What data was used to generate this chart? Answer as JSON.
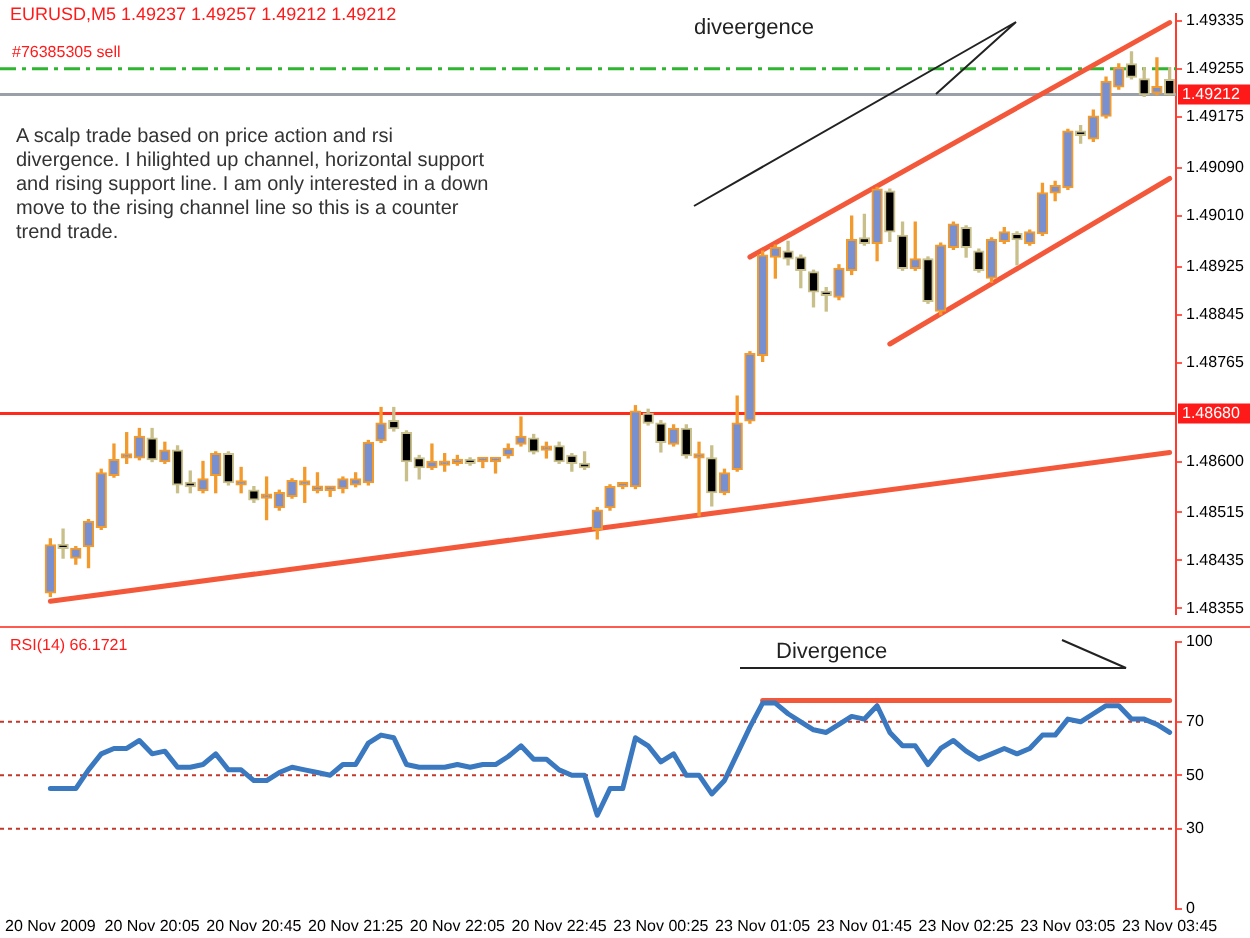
{
  "chart_data": [
    {
      "type": "candlestick",
      "title": "EURUSD,M5 1.49237 1.49257 1.49212 1.49212",
      "ohlc": [
        [
          1.48381,
          1.48471,
          1.48375,
          1.48461
        ],
        [
          1.48458,
          1.48487,
          1.48439,
          1.48455
        ],
        [
          1.48439,
          1.48458,
          1.48429,
          1.48455
        ],
        [
          1.48458,
          1.48503,
          1.48423,
          1.485
        ],
        [
          1.4849,
          1.48587,
          1.48487,
          1.48581
        ],
        [
          1.48577,
          1.48629,
          1.48574,
          1.48603
        ],
        [
          1.48606,
          1.48648,
          1.48597,
          1.48606
        ],
        [
          1.48606,
          1.48655,
          1.48603,
          1.48642
        ],
        [
          1.48639,
          1.48655,
          1.486,
          1.48603
        ],
        [
          1.486,
          1.48632,
          1.48597,
          1.48619
        ],
        [
          1.48619,
          1.48626,
          1.48548,
          1.48561
        ],
        [
          1.48565,
          1.48584,
          1.48548,
          1.48558
        ],
        [
          1.48552,
          1.486,
          1.48548,
          1.48571
        ],
        [
          1.48577,
          1.48616,
          1.48548,
          1.48613
        ],
        [
          1.48613,
          1.48616,
          1.48561,
          1.48565
        ],
        [
          1.48561,
          1.4859,
          1.48548,
          1.48561
        ],
        [
          1.48552,
          1.48558,
          1.48532,
          1.48536
        ],
        [
          1.48539,
          1.48574,
          1.48503,
          1.48539
        ],
        [
          1.48523,
          1.48552,
          1.48519,
          1.48548
        ],
        [
          1.48542,
          1.48571,
          1.48539,
          1.48568
        ],
        [
          1.48561,
          1.4859,
          1.48532,
          1.48561
        ],
        [
          1.48552,
          1.48581,
          1.48548,
          1.48558
        ],
        [
          1.48552,
          1.48558,
          1.48542,
          1.48552
        ],
        [
          1.48555,
          1.48574,
          1.48548,
          1.48571
        ],
        [
          1.48561,
          1.48581,
          1.48558,
          1.48571
        ],
        [
          1.48565,
          1.48635,
          1.48561,
          1.48632
        ],
        [
          1.48635,
          1.4869,
          1.48632,
          1.48664
        ],
        [
          1.48668,
          1.4869,
          1.48651,
          1.48655
        ],
        [
          1.48648,
          1.48651,
          1.48568,
          1.486
        ],
        [
          1.48606,
          1.4861,
          1.48571,
          1.4859
        ],
        [
          1.4859,
          1.48629,
          1.48587,
          1.486
        ],
        [
          1.48594,
          1.48613,
          1.48584,
          1.48594
        ],
        [
          1.48597,
          1.4861,
          1.48594,
          1.48603
        ],
        [
          1.486,
          1.48606,
          1.48594,
          1.48597
        ],
        [
          1.486,
          1.48606,
          1.4859,
          1.486
        ],
        [
          1.486,
          1.48606,
          1.48581,
          1.48603
        ],
        [
          1.4861,
          1.48629,
          1.48606,
          1.48622
        ],
        [
          1.48629,
          1.48674,
          1.48626,
          1.48642
        ],
        [
          1.48639,
          1.48645,
          1.48613,
          1.48616
        ],
        [
          1.48619,
          1.48632,
          1.48606,
          1.48619
        ],
        [
          1.48626,
          1.48632,
          1.48597,
          1.486
        ],
        [
          1.4861,
          1.48613,
          1.48584,
          1.48597
        ],
        [
          1.48597,
          1.48616,
          1.48587,
          1.4859
        ],
        [
          1.48487,
          1.48523,
          1.48471,
          1.48519
        ],
        [
          1.48523,
          1.48561,
          1.48519,
          1.48558
        ],
        [
          1.48558,
          1.48561,
          1.48555,
          1.48558
        ],
        [
          1.48558,
          1.48693,
          1.48555,
          1.48684
        ],
        [
          1.4868,
          1.48687,
          1.48661,
          1.48664
        ],
        [
          1.48664,
          1.48668,
          1.48616,
          1.48632
        ],
        [
          1.48629,
          1.48661,
          1.48626,
          1.48655
        ],
        [
          1.48655,
          1.48661,
          1.48606,
          1.4861
        ],
        [
          1.48606,
          1.48632,
          1.4851,
          1.48606
        ],
        [
          1.48606,
          1.48626,
          1.48526,
          1.48548
        ],
        [
          1.48548,
          1.48587,
          1.48545,
          1.48581
        ],
        [
          1.48587,
          1.48709,
          1.48584,
          1.48664
        ],
        [
          1.48668,
          1.48783,
          1.48664,
          1.4878
        ],
        [
          1.48777,
          1.48951,
          1.48767,
          1.48944
        ],
        [
          1.48941,
          1.48961,
          1.48906,
          1.48957
        ],
        [
          1.48951,
          1.48967,
          1.48928,
          1.48938
        ],
        [
          1.48941,
          1.48944,
          1.4889,
          1.48919
        ],
        [
          1.48916,
          1.48919,
          1.48858,
          1.48883
        ],
        [
          1.48883,
          1.4889,
          1.48851,
          1.48877
        ],
        [
          1.48874,
          1.48928,
          1.4887,
          1.48922
        ],
        [
          1.48919,
          1.49009,
          1.48912,
          1.4897
        ],
        [
          1.48973,
          1.49012,
          1.48961,
          1.48964
        ],
        [
          1.48964,
          1.49057,
          1.48935,
          1.49054
        ],
        [
          1.49051,
          1.49054,
          1.48967,
          1.48983
        ],
        [
          1.48977,
          1.48999,
          1.48919,
          1.48922
        ],
        [
          1.48922,
          1.48999,
          1.48919,
          1.48938
        ],
        [
          1.48938,
          1.48941,
          1.48864,
          1.48867
        ],
        [
          1.48851,
          1.48964,
          1.48845,
          1.48961
        ],
        [
          1.48957,
          1.48999,
          1.48954,
          1.48996
        ],
        [
          1.4899,
          1.48993,
          1.48941,
          1.48957
        ],
        [
          1.48951,
          1.48954,
          1.48916,
          1.48919
        ],
        [
          1.48906,
          1.48973,
          1.48899,
          1.4897
        ],
        [
          1.48967,
          1.4899,
          1.48964,
          1.48983
        ],
        [
          1.4898,
          1.48983,
          1.48928,
          1.4897
        ],
        [
          1.48964,
          1.48986,
          1.48961,
          1.48983
        ],
        [
          1.4898,
          1.49064,
          1.48977,
          1.49048
        ],
        [
          1.49048,
          1.49067,
          1.49035,
          1.4906
        ],
        [
          1.49057,
          1.49154,
          1.49054,
          1.49151
        ],
        [
          1.49151,
          1.4916,
          1.49131,
          1.49144
        ],
        [
          1.49138,
          1.49186,
          1.49134,
          1.49176
        ],
        [
          1.49176,
          1.49241,
          1.49173,
          1.49234
        ],
        [
          1.49225,
          1.49263,
          1.49221,
          1.49257
        ],
        [
          1.49263,
          1.49283,
          1.49238,
          1.49241
        ],
        [
          1.49238,
          1.49257,
          1.49209,
          1.49212
        ],
        [
          1.49215,
          1.49273,
          1.49212,
          1.49225
        ],
        [
          1.49237,
          1.49257,
          1.49212,
          1.49212
        ]
      ],
      "ylim": [
        1.48345,
        1.49347
      ],
      "yticks": [
        1.49335,
        1.49255,
        1.49175,
        {
          "value": 1.4909,
          "label": "1.49090"
        },
        {
          "value": 1.4901,
          "label": "1.49010"
        },
        1.48925,
        1.48845,
        1.48765,
        {
          "value": 1.486,
          "label": "1.48600"
        },
        1.48515,
        1.48435,
        1.48355
      ],
      "tick_labels": "y",
      "series": [
        {
          "type": "line",
          "color": "#f4583a",
          "values": [
            null,
            null,
            null,
            null,
            null,
            null,
            null,
            null,
            null,
            null,
            null,
            null,
            null,
            null,
            null,
            null,
            null,
            null,
            null,
            null,
            null,
            null,
            null,
            null,
            null,
            null,
            null,
            null,
            null,
            null,
            null,
            null,
            null,
            null,
            null,
            null,
            null,
            null,
            null,
            null,
            null,
            null,
            null,
            null,
            null,
            null,
            null,
            null,
            null,
            null,
            null,
            null,
            null,
            null,
            null,
            1.48941,
            null,
            null,
            null,
            null,
            null,
            null,
            null,
            null,
            null,
            null,
            null,
            null,
            null,
            null,
            null,
            null,
            null,
            null,
            null,
            null,
            null,
            null,
            null,
            null,
            null,
            null,
            null,
            null,
            null,
            null,
            null,
            null,
            1.49332
          ]
        },
        {
          "type": "line",
          "color": "#f4583a",
          "values": [
            null,
            null,
            null,
            null,
            null,
            null,
            null,
            null,
            null,
            null,
            null,
            null,
            null,
            null,
            null,
            null,
            null,
            null,
            null,
            null,
            null,
            null,
            null,
            null,
            null,
            null,
            null,
            null,
            null,
            null,
            null,
            null,
            null,
            null,
            null,
            null,
            null,
            null,
            null,
            null,
            null,
            null,
            null,
            null,
            null,
            null,
            null,
            null,
            null,
            null,
            null,
            null,
            null,
            null,
            null,
            null,
            null,
            null,
            null,
            null,
            null,
            null,
            null,
            null,
            null,
            null,
            1.48796,
            null,
            null,
            null,
            null,
            null,
            null,
            null,
            null,
            null,
            null,
            null,
            null,
            null,
            null,
            null,
            null,
            null,
            null,
            null,
            null,
            null,
            1.49072
          ]
        },
        {
          "type": "line",
          "color": "#f4583a",
          "values": [
            1.48367,
            null,
            null,
            null,
            null,
            null,
            null,
            null,
            null,
            null,
            null,
            null,
            null,
            null,
            null,
            null,
            null,
            null,
            null,
            null,
            null,
            null,
            null,
            null,
            null,
            null,
            null,
            null,
            null,
            null,
            null,
            null,
            null,
            null,
            null,
            null,
            null,
            null,
            null,
            null,
            null,
            null,
            null,
            null,
            null,
            null,
            null,
            null,
            null,
            null,
            null,
            null,
            null,
            null,
            null,
            null,
            null,
            null,
            null,
            null,
            null,
            null,
            null,
            null,
            null,
            null,
            null,
            null,
            null,
            null,
            null,
            null,
            null,
            null,
            null,
            null,
            null,
            null,
            null,
            null,
            null,
            null,
            null,
            null,
            null,
            null,
            null,
            null,
            1.48615
          ]
        }
      ],
      "ref_lines": [
        {
          "axis": "y",
          "value": 1.49255,
          "label": "#76385305 sell",
          "color": "#2fb52f",
          "line_style": "dashed"
        },
        {
          "axis": "y",
          "value": 1.49212,
          "label": "1.49212",
          "color": "#9aa0a8",
          "line_style": "solid"
        },
        {
          "axis": "y",
          "value": 1.4868,
          "label": "1.48680",
          "color": "#ff2a1a",
          "line_style": "solid"
        }
      ],
      "annotations": [
        "A scalp trade based on price action and rsi divergence. I hilighted up channel, horizontal support and rising support line. I am only interested in a down move to the rising channel line so this is a counter trend trade.",
        "diveergence"
      ]
    },
    {
      "type": "line",
      "title": "RSI(14) 66.1721",
      "categories": [
        "20 Nov 2009",
        null,
        null,
        null,
        null,
        null,
        null,
        null,
        "20 Nov 20:05",
        null,
        null,
        null,
        null,
        null,
        null,
        null,
        "20 Nov 20:45",
        null,
        null,
        null,
        null,
        null,
        null,
        null,
        "20 Nov 21:25",
        null,
        null,
        null,
        null,
        null,
        null,
        null,
        "20 Nov 22:05",
        null,
        null,
        null,
        null,
        null,
        null,
        null,
        "20 Nov 22:45",
        null,
        null,
        null,
        null,
        null,
        null,
        null,
        "23 Nov 00:25",
        null,
        null,
        null,
        null,
        null,
        null,
        null,
        "23 Nov 01:05",
        null,
        null,
        null,
        null,
        null,
        null,
        null,
        "23 Nov 01:45",
        null,
        null,
        null,
        null,
        null,
        null,
        null,
        "23 Nov 02:25",
        null,
        null,
        null,
        null,
        null,
        null,
        null,
        "23 Nov 03:05",
        null,
        null,
        null,
        null,
        null,
        null,
        null,
        "23 Nov 03:45"
      ],
      "series": [
        {
          "color": "#3a78c0",
          "values": [
            45,
            45,
            45,
            52,
            58,
            60,
            60,
            63,
            58,
            59,
            53,
            53,
            54,
            58,
            52,
            52,
            48,
            48,
            51,
            53,
            52,
            51,
            50,
            54,
            54,
            62,
            65,
            64,
            54,
            53,
            53,
            53,
            54,
            53,
            54,
            54,
            57,
            61,
            56,
            56,
            52,
            50,
            50,
            35,
            45,
            45,
            64,
            61,
            55,
            58,
            50,
            50,
            43,
            48,
            58,
            68,
            77,
            77,
            73,
            70,
            67,
            66,
            69,
            72,
            71,
            76,
            66,
            61,
            61,
            54,
            60,
            63,
            59,
            56,
            58,
            60,
            58,
            60,
            65,
            65,
            71,
            70,
            73,
            76,
            76,
            71,
            71,
            69,
            66
          ]
        },
        {
          "color": "#f4583a",
          "values": [
            null,
            null,
            null,
            null,
            null,
            null,
            null,
            null,
            null,
            null,
            null,
            null,
            null,
            null,
            null,
            null,
            null,
            null,
            null,
            null,
            null,
            null,
            null,
            null,
            null,
            null,
            null,
            null,
            null,
            null,
            null,
            null,
            null,
            null,
            null,
            null,
            null,
            null,
            null,
            null,
            null,
            null,
            null,
            null,
            null,
            null,
            null,
            null,
            null,
            null,
            null,
            null,
            null,
            null,
            null,
            null,
            78,
            null,
            null,
            null,
            null,
            null,
            null,
            null,
            null,
            null,
            null,
            null,
            null,
            null,
            null,
            null,
            null,
            null,
            null,
            null,
            null,
            null,
            null,
            null,
            null,
            null,
            null,
            null,
            null,
            null,
            null,
            null,
            78
          ]
        }
      ],
      "ylim": [
        0,
        100
      ],
      "yticks": [
        0,
        30,
        50,
        70,
        100
      ],
      "ref_lines": [
        {
          "axis": "y",
          "value": 70,
          "color": "#c0392b",
          "line_style": "dotted"
        },
        {
          "axis": "y",
          "value": 50,
          "color": "#c0392b",
          "line_style": "dotted"
        },
        {
          "axis": "y",
          "value": 30,
          "color": "#c0392b",
          "line_style": "dotted"
        }
      ],
      "annotations": [
        "Divergence"
      ]
    }
  ]
}
